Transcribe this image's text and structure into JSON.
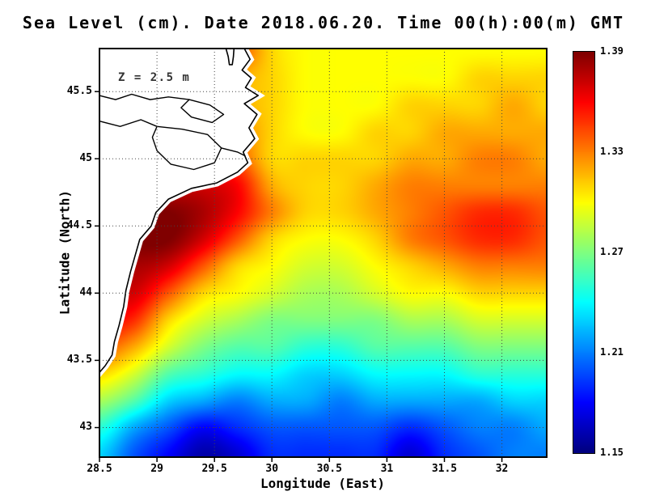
{
  "colors": {
    "land": "#ffffff",
    "coast": "#000000",
    "grid": "#444444",
    "frame": "#000000"
  },
  "chart_data": {
    "type": "heatmap",
    "title": "Sea Level (cm). Date 2018.06.20. Time 00(h):00(m) GMT",
    "xlabel": "Longitude (East)",
    "ylabel": "Latitude (North)",
    "annotation": "Z = 2.5 m",
    "lon_range": [
      28.5,
      32.39
    ],
    "lat_range": [
      42.78,
      45.82
    ],
    "x_ticks": [
      "28.5",
      "29",
      "29.5",
      "30",
      "30.5",
      "31",
      "31.5",
      "32"
    ],
    "y_ticks": [
      "43",
      "43.5",
      "44",
      "44.5",
      "45",
      "45.5"
    ],
    "grid_on": true,
    "legend_position": "right",
    "colorbar": {
      "min": 1.15,
      "max": 1.39,
      "tick_labels": [
        "1.39",
        "1.33",
        "1.27",
        "1.21",
        "1.15"
      ],
      "colormap": "jet"
    },
    "grid_lons": [
      28.5,
      28.8,
      29.1,
      29.4,
      29.7,
      30.0,
      30.3,
      30.6,
      30.9,
      31.2,
      31.5,
      31.8,
      32.1,
      32.4
    ],
    "grid_lats": [
      45.8,
      45.6,
      45.4,
      45.2,
      45.0,
      44.8,
      44.6,
      44.4,
      44.2,
      44.0,
      43.8,
      43.6,
      43.4,
      43.2,
      43.0,
      42.8
    ],
    "values": [
      [
        1.32,
        1.32,
        1.33,
        1.34,
        1.34,
        1.31,
        1.3,
        1.3,
        1.3,
        1.3,
        1.3,
        1.3,
        1.3,
        1.3
      ],
      [
        1.32,
        1.33,
        1.33,
        1.33,
        1.32,
        1.31,
        1.3,
        1.3,
        1.3,
        1.3,
        1.3,
        1.31,
        1.31,
        1.31
      ],
      [
        1.33,
        1.33,
        1.33,
        1.33,
        1.32,
        1.31,
        1.3,
        1.3,
        1.3,
        1.31,
        1.31,
        1.31,
        1.32,
        1.31
      ],
      [
        1.33,
        1.34,
        1.34,
        1.34,
        1.33,
        1.31,
        1.3,
        1.3,
        1.31,
        1.31,
        1.32,
        1.32,
        1.32,
        1.32
      ],
      [
        1.34,
        1.35,
        1.35,
        1.35,
        1.34,
        1.31,
        1.31,
        1.31,
        1.31,
        1.32,
        1.32,
        1.33,
        1.33,
        1.32
      ],
      [
        1.36,
        1.37,
        1.37,
        1.37,
        1.36,
        1.32,
        1.31,
        1.31,
        1.32,
        1.33,
        1.33,
        1.33,
        1.33,
        1.33
      ],
      [
        1.38,
        1.39,
        1.39,
        1.38,
        1.36,
        1.33,
        1.31,
        1.31,
        1.32,
        1.33,
        1.34,
        1.35,
        1.35,
        1.34
      ],
      [
        1.38,
        1.39,
        1.39,
        1.37,
        1.34,
        1.31,
        1.3,
        1.3,
        1.31,
        1.33,
        1.34,
        1.35,
        1.35,
        1.34
      ],
      [
        1.37,
        1.38,
        1.37,
        1.34,
        1.31,
        1.3,
        1.29,
        1.29,
        1.3,
        1.31,
        1.32,
        1.33,
        1.33,
        1.33
      ],
      [
        1.36,
        1.37,
        1.34,
        1.31,
        1.3,
        1.29,
        1.28,
        1.28,
        1.29,
        1.3,
        1.3,
        1.31,
        1.31,
        1.31
      ],
      [
        1.36,
        1.35,
        1.31,
        1.29,
        1.28,
        1.27,
        1.27,
        1.27,
        1.27,
        1.28,
        1.28,
        1.29,
        1.29,
        1.29
      ],
      [
        1.34,
        1.32,
        1.29,
        1.27,
        1.26,
        1.26,
        1.25,
        1.25,
        1.26,
        1.26,
        1.26,
        1.27,
        1.27,
        1.27
      ],
      [
        1.31,
        1.29,
        1.26,
        1.25,
        1.24,
        1.24,
        1.23,
        1.23,
        1.24,
        1.24,
        1.24,
        1.25,
        1.25,
        1.25
      ],
      [
        1.28,
        1.26,
        1.23,
        1.22,
        1.21,
        1.22,
        1.22,
        1.21,
        1.22,
        1.22,
        1.22,
        1.22,
        1.23,
        1.23
      ],
      [
        1.25,
        1.22,
        1.2,
        1.18,
        1.19,
        1.2,
        1.2,
        1.2,
        1.2,
        1.19,
        1.2,
        1.21,
        1.21,
        1.22
      ],
      [
        1.23,
        1.2,
        1.18,
        1.16,
        1.17,
        1.19,
        1.19,
        1.19,
        1.19,
        1.17,
        1.19,
        1.2,
        1.21,
        1.21
      ]
    ],
    "coastline": [
      [
        28.5,
        45.82
      ],
      [
        29.6,
        45.82
      ],
      [
        29.62,
        45.76
      ],
      [
        29.63,
        45.7
      ],
      [
        29.655,
        45.7
      ],
      [
        29.665,
        45.76
      ],
      [
        29.67,
        45.82
      ],
      [
        29.76,
        45.82
      ],
      [
        29.81,
        45.74
      ],
      [
        29.74,
        45.66
      ],
      [
        29.82,
        45.6
      ],
      [
        29.77,
        45.53
      ],
      [
        29.88,
        45.47
      ],
      [
        29.76,
        45.41
      ],
      [
        29.87,
        45.33
      ],
      [
        29.8,
        45.23
      ],
      [
        29.85,
        45.15
      ],
      [
        29.75,
        45.05
      ],
      [
        29.79,
        44.97
      ],
      [
        29.7,
        44.9
      ],
      [
        29.52,
        44.82
      ],
      [
        29.3,
        44.78
      ],
      [
        29.1,
        44.7
      ],
      [
        28.99,
        44.6
      ],
      [
        28.95,
        44.5
      ],
      [
        28.85,
        44.4
      ],
      [
        28.81,
        44.28
      ],
      [
        28.77,
        44.16
      ],
      [
        28.73,
        44.02
      ],
      [
        28.71,
        43.9
      ],
      [
        28.67,
        43.76
      ],
      [
        28.63,
        43.64
      ],
      [
        28.61,
        43.54
      ],
      [
        28.55,
        43.46
      ],
      [
        28.5,
        43.41
      ]
    ],
    "lakes": [
      [
        [
          29.0,
          45.24
        ],
        [
          29.22,
          45.22
        ],
        [
          29.44,
          45.18
        ],
        [
          29.56,
          45.08
        ],
        [
          29.5,
          44.97
        ],
        [
          29.32,
          44.92
        ],
        [
          29.12,
          44.96
        ],
        [
          29.0,
          45.06
        ],
        [
          28.96,
          45.16
        ]
      ],
      [
        [
          29.28,
          45.44
        ],
        [
          29.46,
          45.4
        ],
        [
          29.58,
          45.33
        ],
        [
          29.48,
          45.27
        ],
        [
          29.3,
          45.31
        ],
        [
          29.21,
          45.38
        ]
      ]
    ],
    "rivers": [
      [
        [
          28.5,
          45.47
        ],
        [
          28.64,
          45.44
        ],
        [
          28.78,
          45.48
        ],
        [
          28.94,
          45.44
        ],
        [
          29.1,
          45.46
        ],
        [
          29.28,
          45.44
        ]
      ],
      [
        [
          28.5,
          45.28
        ],
        [
          28.68,
          45.24
        ],
        [
          28.86,
          45.29
        ],
        [
          29.0,
          45.24
        ]
      ],
      [
        [
          29.56,
          45.08
        ],
        [
          29.7,
          45.05
        ],
        [
          29.77,
          45.02
        ]
      ]
    ]
  }
}
